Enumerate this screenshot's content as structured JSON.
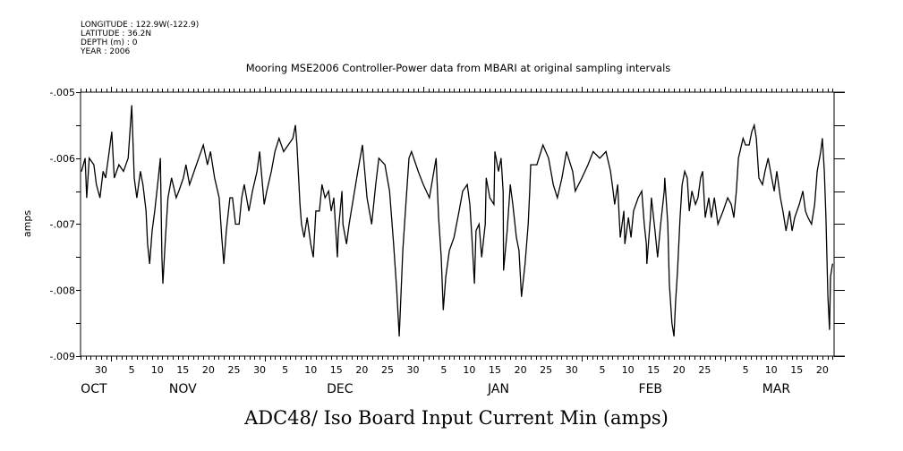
{
  "header": {
    "meta_lines": [
      "LONGITUDE : 122.9W(-122.9)",
      "LATITUDE : 36.2N",
      "DEPTH (m) : 0",
      "YEAR : 2006"
    ]
  },
  "chart_data": {
    "type": "line",
    "title": "Mooring MSE2006 Controller-Power data from MBARI at original sampling intervals",
    "xlabel": "ADC48/ Iso Board Input Current Min (amps)",
    "ylabel": "amps",
    "x_units": "days since Oct 26",
    "xlim": [
      0,
      147.3
    ],
    "ylim": [
      -0.009,
      -0.005
    ],
    "grid": false,
    "y_ticks": [
      {
        "value": -0.005,
        "label": "-.005"
      },
      {
        "value": -0.006,
        "label": "-.006"
      },
      {
        "value": -0.007,
        "label": "-.007"
      },
      {
        "value": -0.008,
        "label": "-.008"
      },
      {
        "value": -0.009,
        "label": "-.009"
      }
    ],
    "x_day_labels": [
      {
        "x": 4,
        "label": "30"
      },
      {
        "x": 10,
        "label": "5"
      },
      {
        "x": 15,
        "label": "10"
      },
      {
        "x": 20,
        "label": "15"
      },
      {
        "x": 25,
        "label": "20"
      },
      {
        "x": 30,
        "label": "25"
      },
      {
        "x": 35,
        "label": "30"
      },
      {
        "x": 40,
        "label": "5"
      },
      {
        "x": 45,
        "label": "10"
      },
      {
        "x": 50,
        "label": "15"
      },
      {
        "x": 55,
        "label": "20"
      },
      {
        "x": 60,
        "label": "25"
      },
      {
        "x": 65,
        "label": "30"
      },
      {
        "x": 71,
        "label": "5"
      },
      {
        "x": 76,
        "label": "10"
      },
      {
        "x": 81,
        "label": "15"
      },
      {
        "x": 86,
        "label": "20"
      },
      {
        "x": 91,
        "label": "25"
      },
      {
        "x": 96,
        "label": "30"
      },
      {
        "x": 102,
        "label": "5"
      },
      {
        "x": 107,
        "label": "10"
      },
      {
        "x": 112,
        "label": "15"
      },
      {
        "x": 117,
        "label": "20"
      },
      {
        "x": 122,
        "label": "25"
      },
      {
        "x": 130,
        "label": "5"
      },
      {
        "x": 135,
        "label": "10"
      },
      {
        "x": 140,
        "label": "15"
      },
      {
        "x": 145,
        "label": "20"
      }
    ],
    "month_labels": [
      {
        "x": 2.6,
        "label": "OCT"
      },
      {
        "x": 20,
        "label": "NOV"
      },
      {
        "x": 50.7,
        "label": "DEC"
      },
      {
        "x": 81.7,
        "label": "JAN"
      },
      {
        "x": 111.4,
        "label": "FEB"
      },
      {
        "x": 136,
        "label": "MAR"
      }
    ],
    "month_boundaries": [
      6,
      36,
      67,
      98,
      126
    ],
    "series": [
      {
        "name": "ADC48/ Iso Board Input Current Min",
        "x": [
          0.2,
          0.9,
          1.2,
          1.7,
          2.6,
          3.1,
          3.8,
          4.4,
          4.9,
          5.6,
          6.1,
          6.6,
          7.5,
          8.4,
          9.3,
          10.0,
          10.5,
          11.0,
          11.7,
          12.2,
          12.8,
          13.1,
          13.5,
          14.0,
          14.5,
          15.2,
          15.6,
          15.9,
          16.1,
          16.6,
          17.1,
          17.8,
          18.7,
          19.2,
          20.1,
          20.6,
          21.3,
          22.2,
          23.1,
          24.0,
          24.8,
          25.4,
          26.2,
          27.1,
          27.6,
          28.0,
          28.5,
          29.2,
          29.7,
          30.3,
          31.0,
          31.5,
          32.0,
          32.9,
          33.6,
          34.5,
          35.0,
          35.9,
          36.4,
          37.3,
          38.0,
          38.8,
          39.7,
          40.6,
          41.5,
          42.0,
          42.3,
          42.9,
          43.2,
          43.7,
          44.3,
          45.0,
          45.5,
          46.0,
          46.7,
          47.2,
          47.8,
          48.5,
          49.0,
          49.5,
          50.2,
          50.4,
          51.1,
          51.3,
          52.0,
          52.5,
          54.2,
          55.1,
          56.0,
          56.9,
          57.7,
          58.3,
          59.5,
          60.4,
          61.2,
          61.8,
          62.3,
          63.0,
          63.5,
          64.2,
          64.7,
          66.0,
          67.0,
          68.2,
          69.5,
          70.0,
          70.5,
          70.9,
          71.4,
          72.1,
          73.0,
          74.0,
          74.7,
          75.6,
          76.1,
          76.5,
          77.0,
          77.3,
          77.9,
          78.4,
          79.1,
          79.3,
          80.0,
          80.8,
          81.0,
          81.7,
          82.2,
          82.6,
          82.7,
          83.4,
          84.0,
          84.5,
          85.2,
          85.7,
          86.2,
          86.9,
          87.5,
          87.8,
          88.0,
          89.2,
          90.4,
          91.5,
          92.4,
          93.2,
          94.1,
          95.0,
          96.2,
          96.7,
          98.0,
          99.2,
          100.2,
          101.5,
          102.7,
          103.6,
          104.1,
          104.4,
          105.0,
          105.3,
          105.5,
          106.2,
          106.4,
          107.1,
          107.6,
          108.1,
          109.0,
          109.7,
          110.2,
          110.6,
          110.7,
          111.4,
          111.6,
          112.3,
          112.8,
          113.4,
          114.1,
          114.2,
          114.8,
          115.1,
          115.6,
          116.0,
          116.3,
          116.7,
          117.2,
          117.6,
          118.1,
          118.6,
          119.0,
          119.5,
          120.2,
          120.7,
          121.2,
          121.6,
          122.1,
          122.8,
          123.3,
          123.9,
          124.6,
          125.1,
          125.6,
          126.5,
          127.2,
          127.7,
          128.2,
          128.6,
          129.5,
          130.0,
          130.7,
          131.2,
          131.7,
          132.1,
          132.6,
          133.3,
          133.8,
          134.4,
          135.1,
          135.6,
          136.1,
          136.8,
          137.3,
          137.9,
          138.6,
          139.1,
          139.6,
          140.5,
          141.2,
          141.7,
          142.2,
          142.9,
          143.5,
          144.0,
          144.7,
          145.0,
          145.4,
          145.7,
          146.1,
          146.4,
          146.6,
          147.0
        ],
        "y": [
          -0.0062,
          -0.006,
          -0.0066,
          -0.006,
          -0.0061,
          -0.0064,
          -0.0066,
          -0.0062,
          -0.0063,
          -0.0059,
          -0.0056,
          -0.0063,
          -0.0061,
          -0.0062,
          -0.006,
          -0.0052,
          -0.0063,
          -0.0066,
          -0.0062,
          -0.0064,
          -0.0068,
          -0.0073,
          -0.0076,
          -0.0071,
          -0.0068,
          -0.0063,
          -0.006,
          -0.0075,
          -0.0079,
          -0.0072,
          -0.0066,
          -0.0063,
          -0.0066,
          -0.0065,
          -0.0063,
          -0.0061,
          -0.0064,
          -0.0062,
          -0.006,
          -0.0058,
          -0.0061,
          -0.0059,
          -0.0063,
          -0.0066,
          -0.0072,
          -0.0076,
          -0.0071,
          -0.0066,
          -0.0066,
          -0.007,
          -0.007,
          -0.0066,
          -0.0064,
          -0.0068,
          -0.0065,
          -0.0062,
          -0.0059,
          -0.0067,
          -0.0065,
          -0.0062,
          -0.0059,
          -0.0057,
          -0.0059,
          -0.0058,
          -0.0057,
          -0.0055,
          -0.0058,
          -0.0067,
          -0.007,
          -0.0072,
          -0.0069,
          -0.0073,
          -0.0075,
          -0.0068,
          -0.0068,
          -0.0064,
          -0.0066,
          -0.0065,
          -0.0068,
          -0.0066,
          -0.0075,
          -0.0071,
          -0.0065,
          -0.007,
          -0.0073,
          -0.007,
          -0.0062,
          -0.0058,
          -0.0066,
          -0.007,
          -0.0064,
          -0.006,
          -0.0061,
          -0.0065,
          -0.0073,
          -0.008,
          -0.0087,
          -0.0074,
          -0.0068,
          -0.006,
          -0.0059,
          -0.0062,
          -0.0064,
          -0.0066,
          -0.006,
          -0.0069,
          -0.0075,
          -0.0083,
          -0.0078,
          -0.0074,
          -0.0072,
          -0.0068,
          -0.0065,
          -0.0064,
          -0.0067,
          -0.0072,
          -0.0079,
          -0.0071,
          -0.007,
          -0.0075,
          -0.007,
          -0.0063,
          -0.0066,
          -0.0067,
          -0.0059,
          -0.0062,
          -0.006,
          -0.0065,
          -0.0077,
          -0.0071,
          -0.0064,
          -0.0067,
          -0.0072,
          -0.0074,
          -0.0081,
          -0.0076,
          -0.007,
          -0.0065,
          -0.0061,
          -0.0061,
          -0.0058,
          -0.006,
          -0.0064,
          -0.0066,
          -0.0063,
          -0.0059,
          -0.0062,
          -0.0065,
          -0.0063,
          -0.0061,
          -0.0059,
          -0.006,
          -0.0059,
          -0.0062,
          -0.0065,
          -0.0067,
          -0.0064,
          -0.0069,
          -0.0072,
          -0.0068,
          -0.0073,
          -0.0069,
          -0.0072,
          -0.0068,
          -0.0066,
          -0.0065,
          -0.007,
          -0.0073,
          -0.0076,
          -0.0069,
          -0.0066,
          -0.0071,
          -0.0075,
          -0.007,
          -0.0065,
          -0.0063,
          -0.007,
          -0.0079,
          -0.0085,
          -0.0087,
          -0.0082,
          -0.0077,
          -0.0069,
          -0.0064,
          -0.0062,
          -0.0063,
          -0.0068,
          -0.0065,
          -0.0067,
          -0.0066,
          -0.0063,
          -0.0062,
          -0.0069,
          -0.0066,
          -0.0069,
          -0.0066,
          -0.007,
          -0.0069,
          -0.0068,
          -0.0066,
          -0.0067,
          -0.0069,
          -0.0065,
          -0.006,
          -0.0057,
          -0.0058,
          -0.0058,
          -0.0056,
          -0.0055,
          -0.0057,
          -0.0063,
          -0.0064,
          -0.0062,
          -0.006,
          -0.0063,
          -0.0065,
          -0.0062,
          -0.0066,
          -0.0068,
          -0.0071,
          -0.0068,
          -0.0071,
          -0.0069,
          -0.0067,
          -0.0065,
          -0.0068,
          -0.0069,
          -0.007,
          -0.0067,
          -0.0062,
          -0.0059,
          -0.0057,
          -0.0062,
          -0.0069,
          -0.0081,
          -0.0086,
          -0.0078,
          -0.0076
        ]
      }
    ]
  }
}
